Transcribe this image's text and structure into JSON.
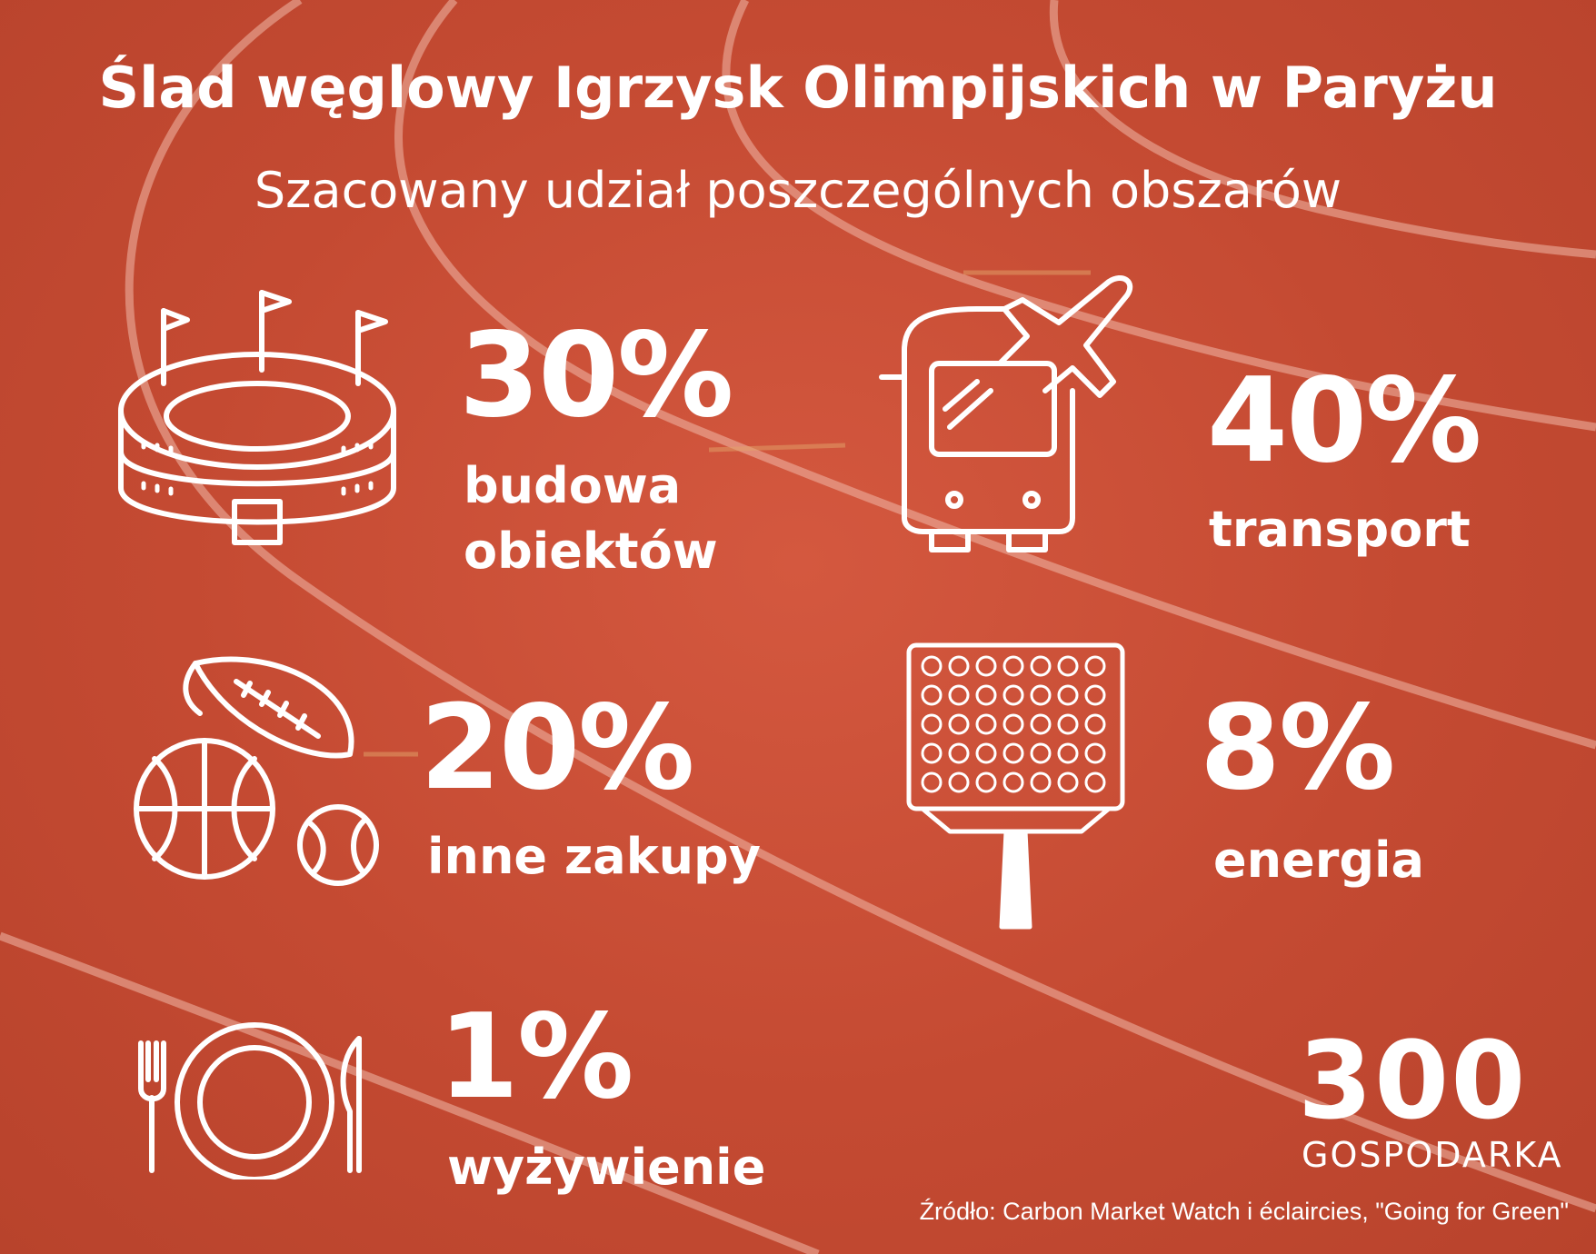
{
  "title": "Ślad węglowy Igrzysk Olimpijskich w Paryżu",
  "subtitle": "Szacowany udział poszczególnych obszarów",
  "items": [
    {
      "percent": "30%",
      "label_line1": "budowa",
      "label_line2": "obiektów",
      "icon": "stadium-icon"
    },
    {
      "percent": "40%",
      "label_line1": "transport",
      "icon": "bus-plane-icon"
    },
    {
      "percent": "20%",
      "label_line1": "inne zakupy",
      "icon": "sports-balls-icon"
    },
    {
      "percent": "8%",
      "label_line1": "energia",
      "icon": "floodlight-icon"
    },
    {
      "percent": "1%",
      "label_line1": "wyżywienie",
      "icon": "plate-cutlery-icon"
    }
  ],
  "logo": {
    "number": "300",
    "word": "GOSPODARKA"
  },
  "source": "Źródło: Carbon Market Watch i éclaircies, \"Going for Green\"",
  "colors": {
    "background": "#c94a34",
    "text": "#ffffff",
    "track_lines": "#e8a595"
  }
}
